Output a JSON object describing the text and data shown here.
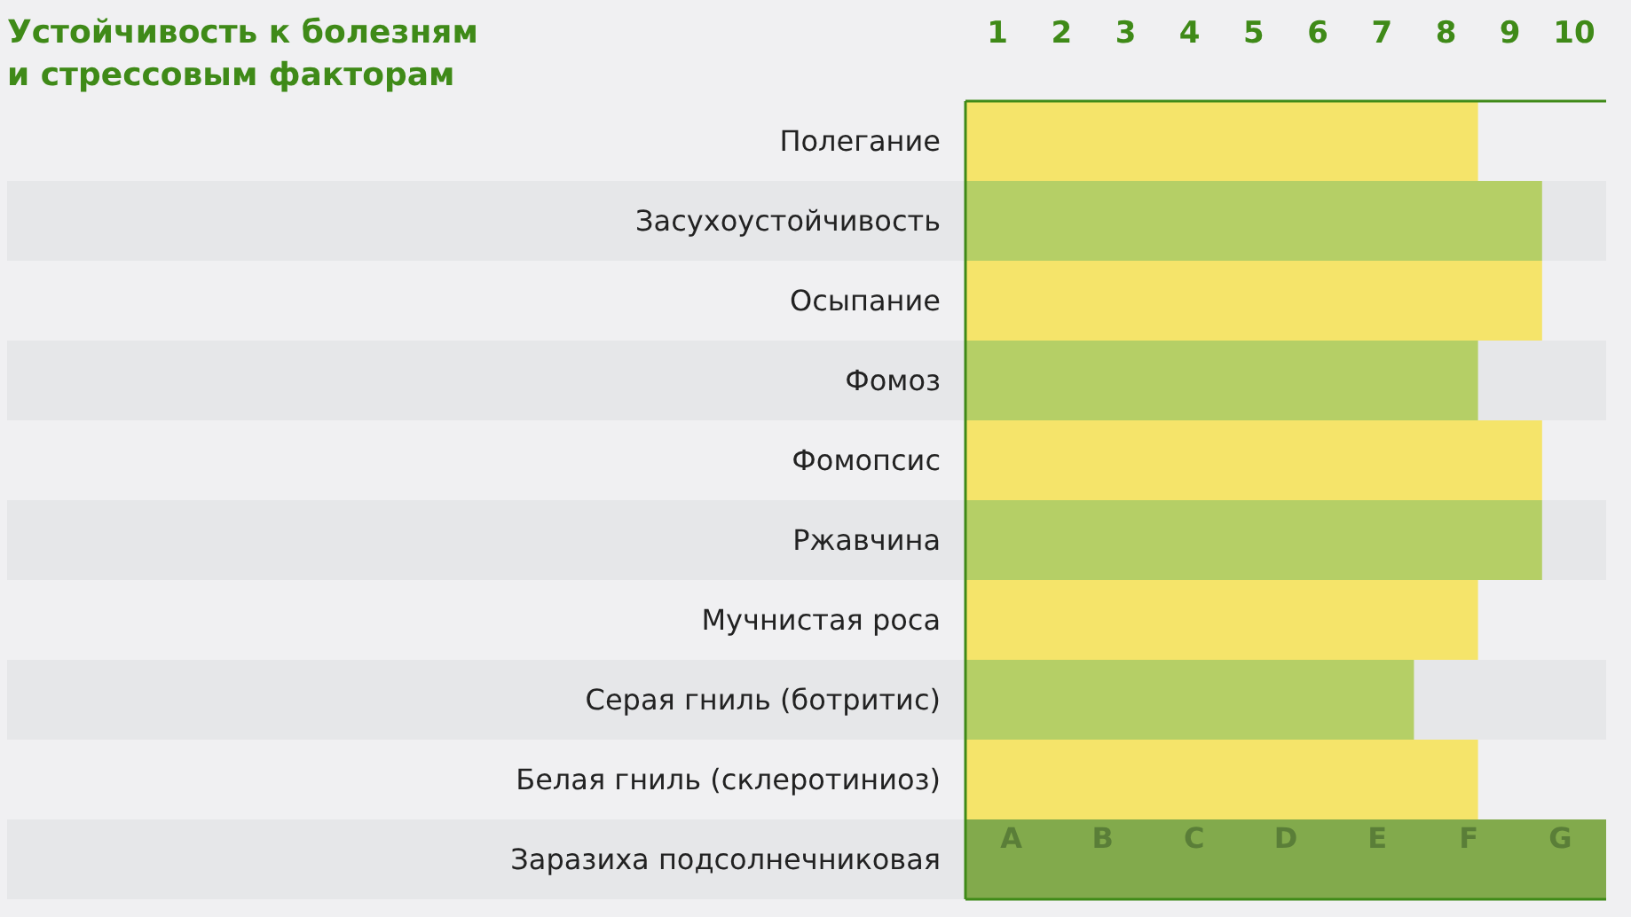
{
  "chart_data": {
    "type": "bar",
    "orientation": "horizontal",
    "title": "Устойчивость к болезням\nи стрессовым факторам",
    "categories": [
      "Полегание",
      "Засухоустойчивость",
      "Осыпание",
      "Фомоз",
      "Фомопсис",
      "Ржавчина",
      "Мучнистая роса",
      "Серая гниль (ботритис)",
      "Белая гниль (склеротиниоз)",
      "Заразиха подсолнечниковая"
    ],
    "values": [
      8,
      9,
      9,
      8,
      9,
      9,
      8,
      7,
      8,
      10
    ],
    "colors": [
      "#f5e46a",
      "#b5cf66",
      "#f5e46a",
      "#b5cf66",
      "#f5e46a",
      "#b5cf66",
      "#f5e46a",
      "#b5cf66",
      "#f5e46a",
      "#82aa4c"
    ],
    "xlim": [
      0,
      10
    ],
    "xticks": [
      {
        "value": 0.5,
        "label": "1"
      },
      {
        "value": 1.5,
        "label": "2"
      },
      {
        "value": 2.5,
        "label": "3"
      },
      {
        "value": 3.5,
        "label": "4"
      },
      {
        "value": 4.5,
        "label": "5"
      },
      {
        "value": 5.5,
        "label": "6"
      },
      {
        "value": 6.5,
        "label": "7"
      },
      {
        "value": 7.5,
        "label": "8"
      },
      {
        "value": 8.5,
        "label": "9"
      },
      {
        "value": 9.5,
        "label": "10"
      }
    ],
    "annotations": [
      "A",
      "B",
      "C",
      "D",
      "E",
      "F",
      "G"
    ]
  }
}
